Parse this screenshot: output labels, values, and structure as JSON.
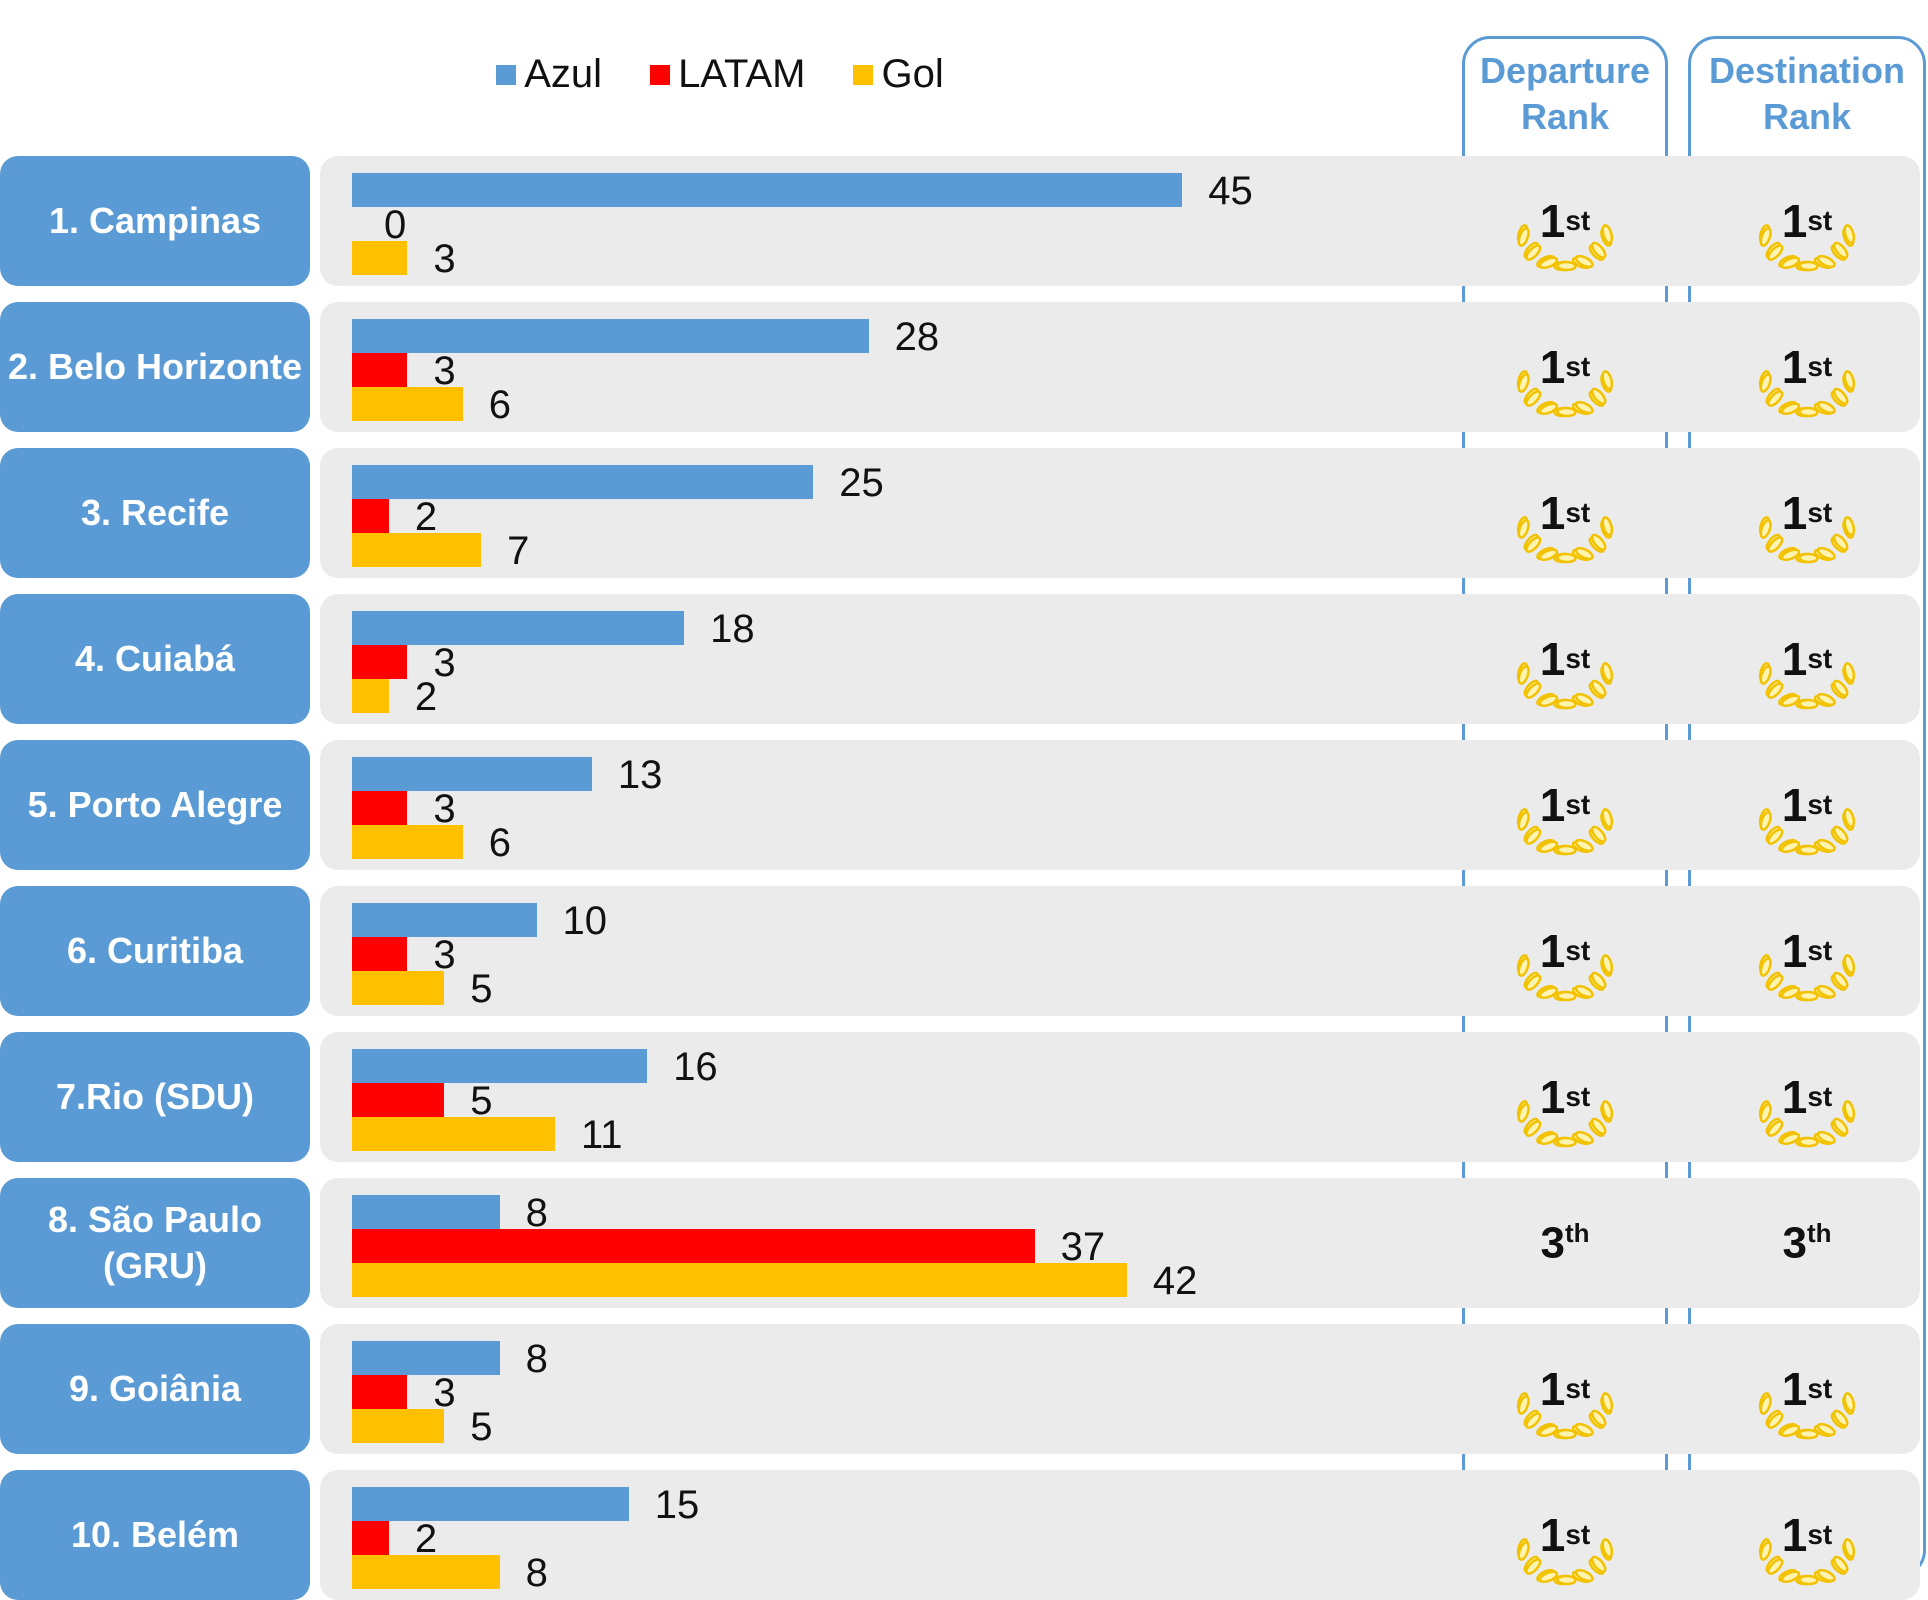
{
  "legend": {
    "azul": {
      "label": "Azul",
      "color": "#5b9bd5"
    },
    "latam": {
      "label": "LATAM",
      "color": "#ff0000"
    },
    "gol": {
      "label": "Gol",
      "color": "#ffc000"
    }
  },
  "rank_headers": {
    "departure": "Departure Rank",
    "destination": "Destination Rank"
  },
  "chart_data": {
    "type": "bar",
    "orientation": "horizontal",
    "categories": [
      "1. Campinas",
      "2. Belo Horizonte",
      "3. Recife",
      "4. Cuiabá",
      "5. Porto Alegre",
      "6. Curitiba",
      "7.Rio (SDU)",
      "8. São Paulo (GRU)",
      "9. Goiânia",
      "10. Belém"
    ],
    "series": [
      {
        "name": "Azul",
        "color": "#5b9bd5",
        "values": [
          45,
          28,
          25,
          18,
          13,
          10,
          16,
          8,
          8,
          15
        ]
      },
      {
        "name": "LATAM",
        "color": "#ff0000",
        "values": [
          0,
          3,
          2,
          3,
          3,
          3,
          5,
          37,
          3,
          2
        ]
      },
      {
        "name": "Gol",
        "color": "#ffc000",
        "values": [
          3,
          6,
          7,
          2,
          6,
          5,
          11,
          42,
          5,
          8
        ]
      }
    ],
    "departure_rank": [
      "1st",
      "1st",
      "1st",
      "1st",
      "1st",
      "1st",
      "1st",
      "3th",
      "1st",
      "1st"
    ],
    "destination_rank": [
      "1st",
      "1st",
      "1st",
      "1st",
      "1st",
      "1st",
      "1st",
      "3th",
      "1st",
      "1st"
    ],
    "legend_position": "top-center",
    "grid": false,
    "xlim": [
      0,
      45
    ]
  }
}
